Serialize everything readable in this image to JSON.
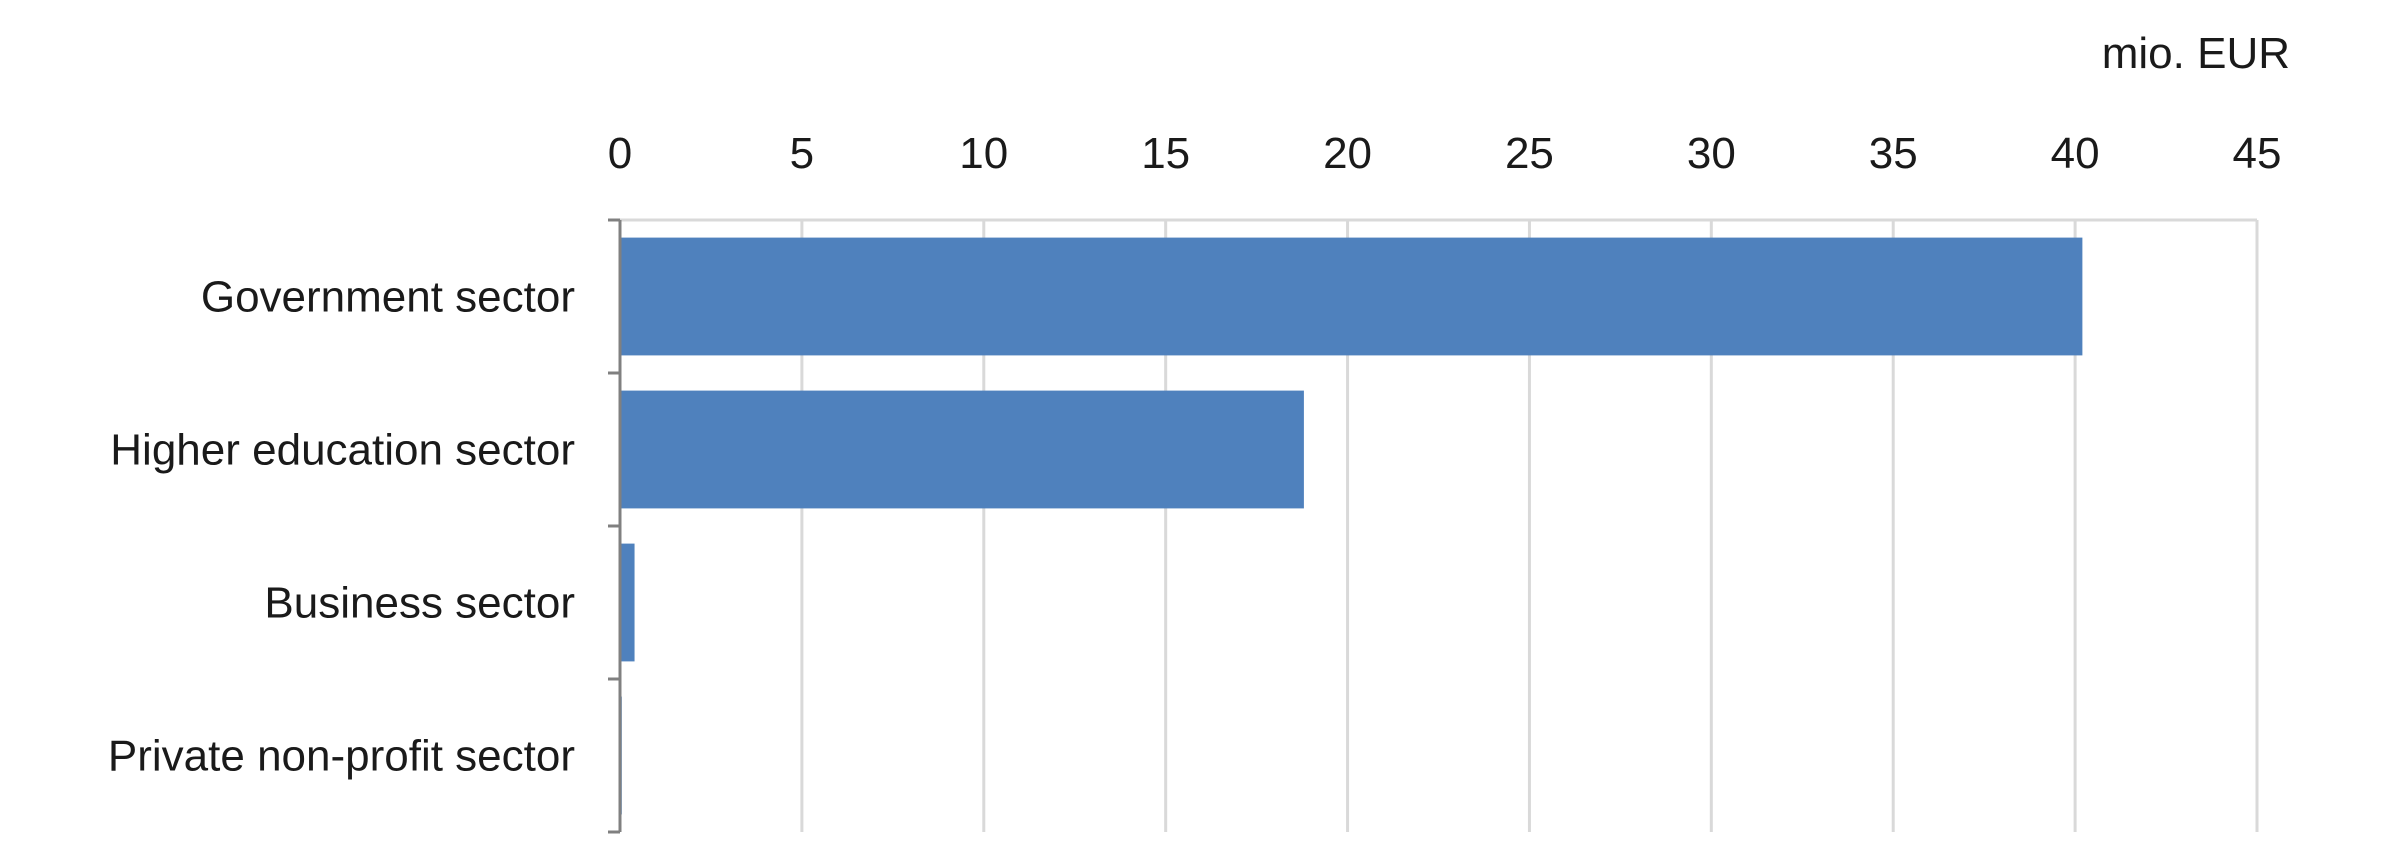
{
  "chart_data": {
    "type": "bar",
    "orientation": "horizontal",
    "categories": [
      "Government sector",
      "Higher education sector",
      "Business sector",
      "Private non-profit sector"
    ],
    "values": [
      40.2,
      18.8,
      0.4,
      0.05
    ],
    "unit_label": "mio. EUR",
    "x_ticks": [
      0,
      5,
      10,
      15,
      20,
      25,
      30,
      35,
      40,
      45
    ],
    "xlim": [
      0,
      45
    ],
    "x_axis_position": "top",
    "grid": true,
    "legend": "none",
    "colors": {
      "bar": "#4f81bd",
      "grid": "#d9d9d9",
      "axis": "#808080"
    }
  }
}
